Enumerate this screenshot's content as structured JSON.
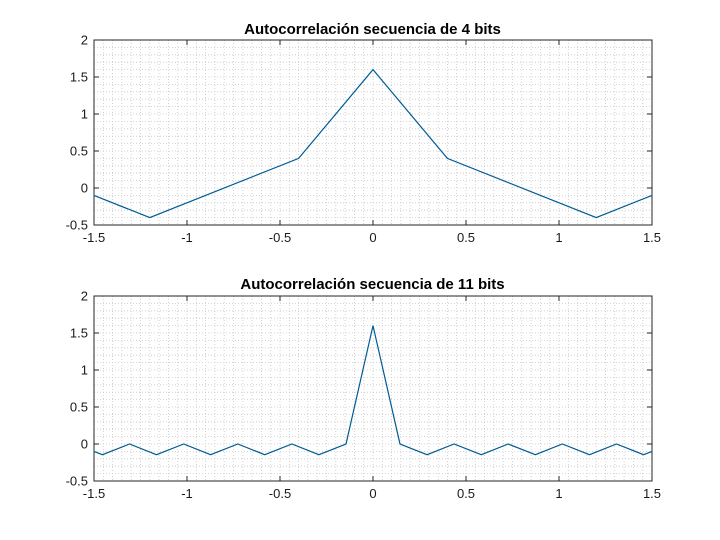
{
  "chart_data": [
    {
      "type": "line",
      "title": "Autocorrelación secuencia de 4 bits",
      "xlabel": "",
      "ylabel": "",
      "xlim": [
        -1.5,
        1.5
      ],
      "ylim": [
        -0.5,
        2
      ],
      "xticks": [
        "-1.5",
        "-1",
        "-0.5",
        "0",
        "0.5",
        "1",
        "1.5"
      ],
      "yticks": [
        "-0.5",
        "0",
        "0.5",
        "1",
        "1.5",
        "2"
      ],
      "grid": true,
      "series": [
        {
          "color": "#005b96",
          "x": [
            -1.5,
            -1.2,
            -0.4,
            0,
            0.4,
            1.2,
            1.5
          ],
          "y": [
            -0.1,
            -0.4,
            0.4,
            1.6,
            0.4,
            -0.4,
            -0.1
          ]
        }
      ]
    },
    {
      "type": "line",
      "title": "Autocorrelación secuencia de 11 bits",
      "xlabel": "",
      "ylabel": "",
      "xlim": [
        -1.5,
        1.5
      ],
      "ylim": [
        -0.5,
        2
      ],
      "xticks": [
        "-1.5",
        "-1",
        "-0.5",
        "0",
        "0.5",
        "1",
        "1.5"
      ],
      "yticks": [
        "-0.5",
        "0",
        "0.5",
        "1",
        "1.5",
        "2"
      ],
      "grid": true,
      "series": [
        {
          "color": "#005b96",
          "x": [
            -1.5,
            -1.455,
            -1.309,
            -1.164,
            -1.018,
            -0.873,
            -0.727,
            -0.582,
            -0.436,
            -0.291,
            -0.145,
            0,
            0.145,
            0.291,
            0.436,
            0.582,
            0.727,
            0.873,
            1.018,
            1.164,
            1.309,
            1.455,
            1.5
          ],
          "y": [
            -0.1,
            -0.145,
            0,
            -0.145,
            0,
            -0.145,
            0,
            -0.145,
            0,
            -0.145,
            0,
            1.6,
            0,
            -0.145,
            0,
            -0.145,
            0,
            -0.145,
            0,
            -0.145,
            0,
            -0.145,
            -0.1
          ]
        }
      ]
    }
  ]
}
